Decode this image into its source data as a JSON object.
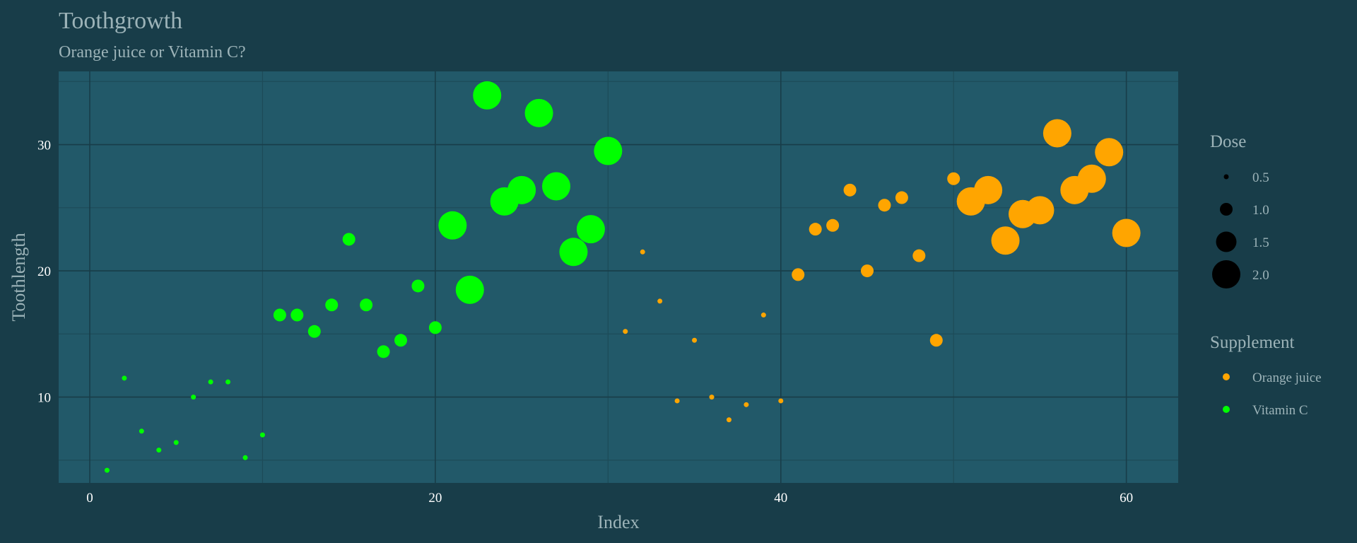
{
  "colors": {
    "background": "#183d49",
    "panel": "#225969",
    "grid_major": "#183d49",
    "grid_minor": "#1d4b58",
    "orange_juice": "#ffa500",
    "vitamin_c": "#00ff00",
    "dose_key": "#000000"
  },
  "chart_data": {
    "type": "scatter",
    "title": "Toothgrowth",
    "subtitle": "Orange juice or Vitamin C?",
    "xlabel": "Index",
    "ylabel": "Toothlength",
    "xlim": [
      -1.8,
      63
    ],
    "ylim": [
      3.2,
      35.8
    ],
    "x_ticks": [
      0,
      20,
      40,
      60
    ],
    "y_ticks": [
      10,
      20,
      30
    ],
    "grid": true,
    "legend_position": "right",
    "legends": {
      "size": {
        "title": "Dose",
        "entries": [
          {
            "label": "0.5",
            "dose": 0.5
          },
          {
            "label": "1.0",
            "dose": 1.0
          },
          {
            "label": "1.5",
            "dose": 1.5
          },
          {
            "label": "2.0",
            "dose": 2.0
          }
        ]
      },
      "color": {
        "title": "Supplement",
        "entries": [
          {
            "label": "Orange juice",
            "key": "orange_juice"
          },
          {
            "label": "Vitamin C",
            "key": "vitamin_c"
          }
        ]
      }
    },
    "series": [
      {
        "name": "Vitamin C",
        "color_key": "vitamin_c",
        "points": [
          {
            "x": 1,
            "y": 4.2,
            "dose": 0.5
          },
          {
            "x": 2,
            "y": 11.5,
            "dose": 0.5
          },
          {
            "x": 3,
            "y": 7.3,
            "dose": 0.5
          },
          {
            "x": 4,
            "y": 5.8,
            "dose": 0.5
          },
          {
            "x": 5,
            "y": 6.4,
            "dose": 0.5
          },
          {
            "x": 6,
            "y": 10.0,
            "dose": 0.5
          },
          {
            "x": 7,
            "y": 11.2,
            "dose": 0.5
          },
          {
            "x": 8,
            "y": 11.2,
            "dose": 0.5
          },
          {
            "x": 9,
            "y": 5.2,
            "dose": 0.5
          },
          {
            "x": 10,
            "y": 7.0,
            "dose": 0.5
          },
          {
            "x": 11,
            "y": 16.5,
            "dose": 1.0
          },
          {
            "x": 12,
            "y": 16.5,
            "dose": 1.0
          },
          {
            "x": 13,
            "y": 15.2,
            "dose": 1.0
          },
          {
            "x": 14,
            "y": 17.3,
            "dose": 1.0
          },
          {
            "x": 15,
            "y": 22.5,
            "dose": 1.0
          },
          {
            "x": 16,
            "y": 17.3,
            "dose": 1.0
          },
          {
            "x": 17,
            "y": 13.6,
            "dose": 1.0
          },
          {
            "x": 18,
            "y": 14.5,
            "dose": 1.0
          },
          {
            "x": 19,
            "y": 18.8,
            "dose": 1.0
          },
          {
            "x": 20,
            "y": 15.5,
            "dose": 1.0
          },
          {
            "x": 21,
            "y": 23.6,
            "dose": 2.0
          },
          {
            "x": 22,
            "y": 18.5,
            "dose": 2.0
          },
          {
            "x": 23,
            "y": 33.9,
            "dose": 2.0
          },
          {
            "x": 24,
            "y": 25.5,
            "dose": 2.0
          },
          {
            "x": 25,
            "y": 26.4,
            "dose": 2.0
          },
          {
            "x": 26,
            "y": 32.5,
            "dose": 2.0
          },
          {
            "x": 27,
            "y": 26.7,
            "dose": 2.0
          },
          {
            "x": 28,
            "y": 21.5,
            "dose": 2.0
          },
          {
            "x": 29,
            "y": 23.3,
            "dose": 2.0
          },
          {
            "x": 30,
            "y": 29.5,
            "dose": 2.0
          }
        ]
      },
      {
        "name": "Orange juice",
        "color_key": "orange_juice",
        "points": [
          {
            "x": 31,
            "y": 15.2,
            "dose": 0.5
          },
          {
            "x": 32,
            "y": 21.5,
            "dose": 0.5
          },
          {
            "x": 33,
            "y": 17.6,
            "dose": 0.5
          },
          {
            "x": 34,
            "y": 9.7,
            "dose": 0.5
          },
          {
            "x": 35,
            "y": 14.5,
            "dose": 0.5
          },
          {
            "x": 36,
            "y": 10.0,
            "dose": 0.5
          },
          {
            "x": 37,
            "y": 8.2,
            "dose": 0.5
          },
          {
            "x": 38,
            "y": 9.4,
            "dose": 0.5
          },
          {
            "x": 39,
            "y": 16.5,
            "dose": 0.5
          },
          {
            "x": 40,
            "y": 9.7,
            "dose": 0.5
          },
          {
            "x": 41,
            "y": 19.7,
            "dose": 1.0
          },
          {
            "x": 42,
            "y": 23.3,
            "dose": 1.0
          },
          {
            "x": 43,
            "y": 23.6,
            "dose": 1.0
          },
          {
            "x": 44,
            "y": 26.4,
            "dose": 1.0
          },
          {
            "x": 45,
            "y": 20.0,
            "dose": 1.0
          },
          {
            "x": 46,
            "y": 25.2,
            "dose": 1.0
          },
          {
            "x": 47,
            "y": 25.8,
            "dose": 1.0
          },
          {
            "x": 48,
            "y": 21.2,
            "dose": 1.0
          },
          {
            "x": 49,
            "y": 14.5,
            "dose": 1.0
          },
          {
            "x": 50,
            "y": 27.3,
            "dose": 1.0
          },
          {
            "x": 51,
            "y": 25.5,
            "dose": 2.0
          },
          {
            "x": 52,
            "y": 26.4,
            "dose": 2.0
          },
          {
            "x": 53,
            "y": 22.4,
            "dose": 2.0
          },
          {
            "x": 54,
            "y": 24.5,
            "dose": 2.0
          },
          {
            "x": 55,
            "y": 24.8,
            "dose": 2.0
          },
          {
            "x": 56,
            "y": 30.9,
            "dose": 2.0
          },
          {
            "x": 57,
            "y": 26.4,
            "dose": 2.0
          },
          {
            "x": 58,
            "y": 27.3,
            "dose": 2.0
          },
          {
            "x": 59,
            "y": 29.4,
            "dose": 2.0
          },
          {
            "x": 60,
            "y": 23.0,
            "dose": 2.0
          }
        ]
      }
    ]
  }
}
